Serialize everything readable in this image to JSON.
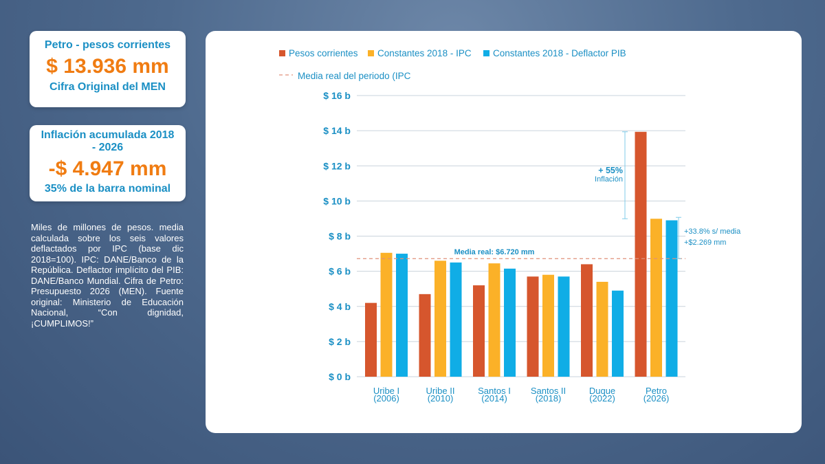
{
  "cards": [
    {
      "title": "Petro - pesos corrientes",
      "value": "$ 13.936 mm",
      "subtitle": "Cifra Original del MEN"
    },
    {
      "title": "Inflación acumulada 2018 - 2026",
      "value": "-$ 4.947 mm",
      "subtitle": "35% de la barra nominal"
    }
  ],
  "note": "Miles de millones de pesos. media calculada sobre los seis valores deflactados por IPC (base dic 2018=100). IPC: DANE/Banco de la República. Deflactor implícito del PIB: DANE/Banco Mundial. Cifra de Petro: Presupuesto 2026 (MEN). Fuente original: Ministerio de Educación Nacional, “Con dignidad, ¡CUMPLIMOS!”",
  "colors": {
    "nominal": "#d6562d",
    "ipc": "#fbb128",
    "deflactor": "#10ade6",
    "text": "#1a8fc4",
    "accent": "#f07c12",
    "grid": "#c9d3dc"
  },
  "chart_data": {
    "type": "bar",
    "categories": [
      {
        "line1": "Uribe I",
        "line2": "(2006)"
      },
      {
        "line1": "Uribe II",
        "line2": "(2010)"
      },
      {
        "line1": "Santos I",
        "line2": "(2014)"
      },
      {
        "line1": "Santos II",
        "line2": "(2018)"
      },
      {
        "line1": "Duque",
        "line2": "(2022)"
      },
      {
        "line1": "Petro",
        "line2": "(2026)"
      }
    ],
    "series": [
      {
        "name": "Pesos corrientes",
        "color_key": "nominal",
        "values": [
          4.2,
          4.7,
          5.2,
          5.7,
          6.4,
          13.936
        ]
      },
      {
        "name": "Constantes 2018 - IPC",
        "color_key": "ipc",
        "values": [
          7.05,
          6.6,
          6.45,
          5.8,
          5.4,
          8.989
        ]
      },
      {
        "name": "Constantes 2018 - Deflactor PIB",
        "color_key": "deflactor",
        "values": [
          7.0,
          6.5,
          6.15,
          5.7,
          4.9,
          8.9
        ]
      }
    ],
    "reference_line": {
      "name": "Media real del periodo (IPC",
      "value": 6.72,
      "label": "Media real: $6.720 mm"
    },
    "ylim": [
      0,
      16
    ],
    "yticks": [
      0,
      2,
      4,
      6,
      8,
      10,
      12,
      14,
      16
    ],
    "ytick_labels": [
      "$ 0 b",
      "$ 2 b",
      "$ 4 b",
      "$ 6 b",
      "$ 8 b",
      "$ 10 b",
      "$ 12 b",
      "$ 14 b",
      "$ 16 b"
    ],
    "annotations": {
      "inflation_pct": "+ 55%",
      "inflation_label": "Inflación",
      "above_mean_pct": "+33.8% s/ media",
      "above_mean_amount": "+$2.269 mm"
    },
    "grid": true,
    "legend_position": "top"
  }
}
